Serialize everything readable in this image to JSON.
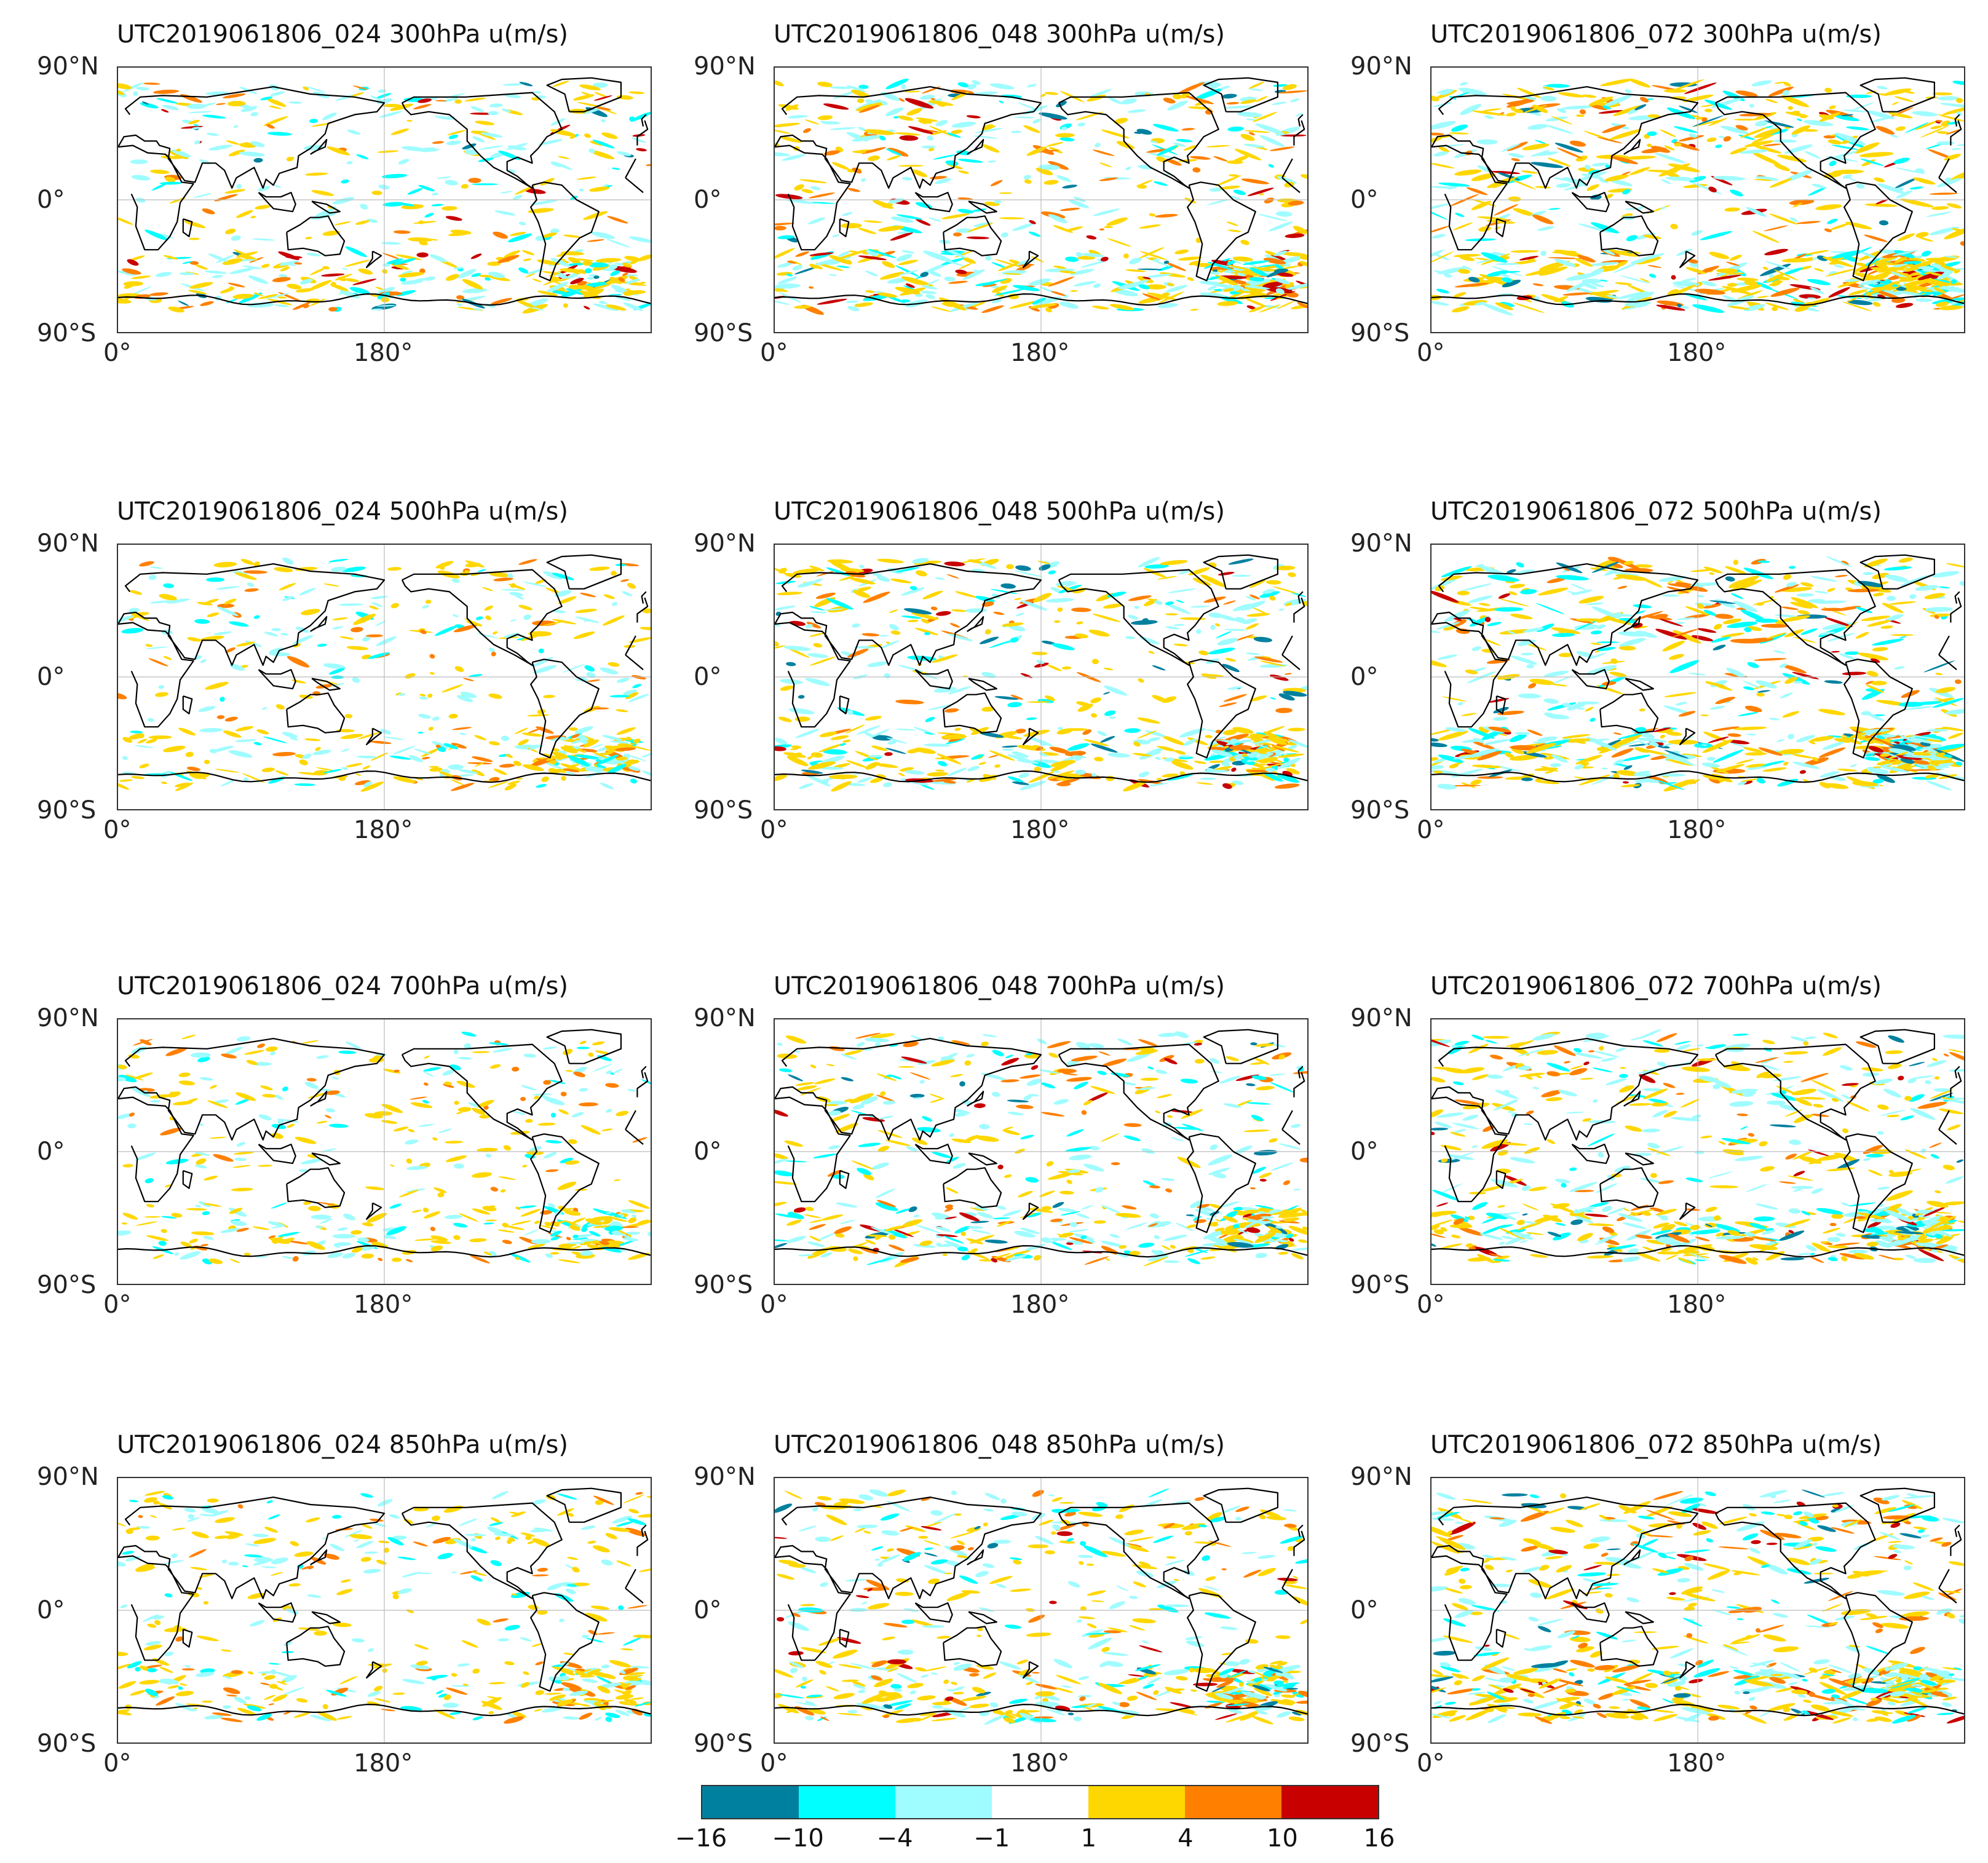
{
  "chart_data": [
    {
      "type": "heatmap",
      "title": "UTC2019061806_024 300hPa u(m/s)",
      "variable": "u(m/s)",
      "level": "300hPa",
      "forecast": "024",
      "yticks": [
        "90°N",
        "0°",
        "90°S"
      ],
      "xticks": [
        "0°",
        "180°"
      ],
      "activity": 0.55
    },
    {
      "type": "heatmap",
      "title": "UTC2019061806_048 300hPa u(m/s)",
      "variable": "u(m/s)",
      "level": "300hPa",
      "forecast": "048",
      "yticks": [
        "90°N",
        "0°",
        "90°S"
      ],
      "xticks": [
        "0°",
        "180°"
      ],
      "activity": 0.8
    },
    {
      "type": "heatmap",
      "title": "UTC2019061806_072 300hPa u(m/s)",
      "variable": "u(m/s)",
      "level": "300hPa",
      "forecast": "072",
      "yticks": [
        "90°N",
        "0°",
        "90°S"
      ],
      "xticks": [
        "0°",
        "180°"
      ],
      "activity": 1.0
    },
    {
      "type": "heatmap",
      "title": "UTC2019061806_024 500hPa u(m/s)",
      "variable": "u(m/s)",
      "level": "500hPa",
      "forecast": "024",
      "yticks": [
        "90°N",
        "0°",
        "90°S"
      ],
      "xticks": [
        "0°",
        "180°"
      ],
      "activity": 0.45
    },
    {
      "type": "heatmap",
      "title": "UTC2019061806_048 500hPa u(m/s)",
      "variable": "u(m/s)",
      "level": "500hPa",
      "forecast": "048",
      "yticks": [
        "90°N",
        "0°",
        "90°S"
      ],
      "xticks": [
        "0°",
        "180°"
      ],
      "activity": 0.7
    },
    {
      "type": "heatmap",
      "title": "UTC2019061806_072 500hPa u(m/s)",
      "variable": "u(m/s)",
      "level": "500hPa",
      "forecast": "072",
      "yticks": [
        "90°N",
        "0°",
        "90°S"
      ],
      "xticks": [
        "0°",
        "180°"
      ],
      "activity": 0.95
    },
    {
      "type": "heatmap",
      "title": "UTC2019061806_024 700hPa u(m/s)",
      "variable": "u(m/s)",
      "level": "700hPa",
      "forecast": "024",
      "yticks": [
        "90°N",
        "0°",
        "90°S"
      ],
      "xticks": [
        "0°",
        "180°"
      ],
      "activity": 0.35
    },
    {
      "type": "heatmap",
      "title": "UTC2019061806_048 700hPa u(m/s)",
      "variable": "u(m/s)",
      "level": "700hPa",
      "forecast": "048",
      "yticks": [
        "90°N",
        "0°",
        "90°S"
      ],
      "xticks": [
        "0°",
        "180°"
      ],
      "activity": 0.55
    },
    {
      "type": "heatmap",
      "title": "UTC2019061806_072 700hPa u(m/s)",
      "variable": "u(m/s)",
      "level": "700hPa",
      "forecast": "072",
      "yticks": [
        "90°N",
        "0°",
        "90°S"
      ],
      "xticks": [
        "0°",
        "180°"
      ],
      "activity": 0.75
    },
    {
      "type": "heatmap",
      "title": "UTC2019061806_024 850hPa u(m/s)",
      "variable": "u(m/s)",
      "level": "850hPa",
      "forecast": "024",
      "yticks": [
        "90°N",
        "0°",
        "90°S"
      ],
      "xticks": [
        "0°",
        "180°"
      ],
      "activity": 0.35
    },
    {
      "type": "heatmap",
      "title": "UTC2019061806_048 850hPa u(m/s)",
      "variable": "u(m/s)",
      "level": "850hPa",
      "forecast": "048",
      "yticks": [
        "90°N",
        "0°",
        "90°S"
      ],
      "xticks": [
        "0°",
        "180°"
      ],
      "activity": 0.55
    },
    {
      "type": "heatmap",
      "title": "UTC2019061806_072 850hPa u(m/s)",
      "variable": "u(m/s)",
      "level": "850hPa",
      "forecast": "072",
      "yticks": [
        "90°N",
        "0°",
        "90°S"
      ],
      "xticks": [
        "0°",
        "180°"
      ],
      "activity": 0.8
    }
  ],
  "colorbar": {
    "ticks": [
      "−16",
      "−10",
      "−4",
      "−1",
      "1",
      "4",
      "10",
      "16"
    ],
    "colors": [
      "#00809f",
      "#00ffff",
      "#9ffcff",
      "#ffffff",
      "#ffd700",
      "#ff8000",
      "#c80000"
    ]
  }
}
